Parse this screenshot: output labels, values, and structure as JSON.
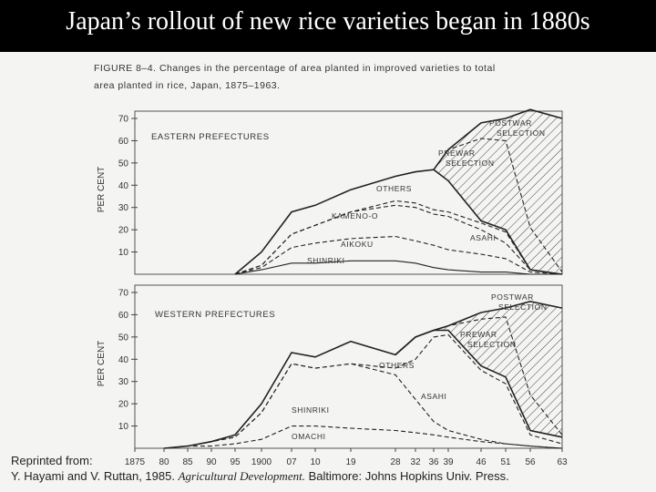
{
  "slide": {
    "title": "Japan’s rollout of new rice varieties began in 1880s"
  },
  "figure": {
    "caption_line1": "FIGURE 8–4. Changes in the percentage of area planted in improved varieties to total",
    "caption_line2": "area planted in rice, Japan, 1875–1963."
  },
  "credit": {
    "line1": "Reprinted from:",
    "authors": "Y. Hayami and V. Ruttan, 1985.",
    "book": "Agricultural Development.",
    "publisher": "Baltimore: Johns Hopkins Univ. Press."
  },
  "chart_data": [
    {
      "type": "area",
      "panel_label": "EASTERN PREFECTURES",
      "ylabel": "PER CENT",
      "ylim": [
        0,
        70
      ],
      "yticks": [
        10,
        20,
        30,
        40,
        50,
        60,
        70
      ],
      "x_tick_labels": [
        "1875",
        "80",
        "85",
        "90",
        "95",
        "1900",
        "07",
        "10",
        "19",
        "28",
        "32",
        "36",
        "39",
        "46",
        "51",
        "56",
        "63"
      ],
      "x_tick_years": [
        1875,
        1880,
        1885,
        1890,
        1895,
        1900,
        1907,
        1910,
        1919,
        1928,
        1932,
        1936,
        1939,
        1946,
        1951,
        1956,
        1963
      ],
      "series": [
        {
          "name": "SHINRIKI",
          "x": [
            1895,
            1900,
            1907,
            1910,
            1919,
            1928,
            1932,
            1936,
            1939,
            1946,
            1951,
            1956,
            1963
          ],
          "y": [
            0,
            2,
            5,
            5,
            6,
            6,
            5,
            3,
            2,
            1,
            1,
            0,
            0
          ]
        },
        {
          "name": "AIKOKU",
          "x": [
            1895,
            1900,
            1907,
            1910,
            1919,
            1928,
            1932,
            1936,
            1939,
            1946,
            1951,
            1956,
            1963
          ],
          "y": [
            0,
            3,
            12,
            14,
            16,
            17,
            15,
            13,
            11,
            9,
            7,
            1,
            0
          ]
        },
        {
          "name": "KAMENO-O",
          "x": [
            1895,
            1900,
            1907,
            1910,
            1919,
            1928,
            1932,
            1936,
            1939,
            1946,
            1951,
            1956,
            1963
          ],
          "y": [
            0,
            4,
            18,
            22,
            28,
            31,
            30,
            27,
            26,
            20,
            14,
            2,
            0
          ]
        },
        {
          "name": "ASAHI",
          "x": [
            1895,
            1900,
            1907,
            1910,
            1919,
            1928,
            1932,
            1936,
            1939,
            1946,
            1951,
            1956,
            1963
          ],
          "y": [
            0,
            4,
            18,
            22,
            28,
            33,
            32,
            29,
            28,
            23,
            19,
            2,
            0
          ]
        },
        {
          "name": "OTHERS",
          "x": [
            1895,
            1900,
            1907,
            1910,
            1919,
            1928,
            1932,
            1936,
            1939,
            1946,
            1951,
            1956,
            1963
          ],
          "y": [
            0,
            10,
            28,
            31,
            38,
            44,
            46,
            47,
            42,
            24,
            20,
            2,
            0
          ]
        },
        {
          "name": "PREWAR SELECTION",
          "x": [
            1936,
            1939,
            1946,
            1951,
            1956,
            1963
          ],
          "y": [
            47,
            56,
            61,
            60,
            21,
            1
          ]
        },
        {
          "name": "POSTWAR SELECTION",
          "x": [
            1936,
            1939,
            1946,
            1951,
            1956,
            1963
          ],
          "y": [
            47,
            56,
            68,
            70,
            74,
            70
          ]
        }
      ]
    },
    {
      "type": "area",
      "panel_label": "WESTERN PREFECTURES",
      "ylabel": "PER CENT",
      "ylim": [
        0,
        70
      ],
      "yticks": [
        10,
        20,
        30,
        40,
        50,
        60,
        70
      ],
      "x_tick_labels": [
        "1875",
        "80",
        "85",
        "90",
        "95",
        "1900",
        "07",
        "10",
        "19",
        "28",
        "32",
        "36",
        "39",
        "46",
        "51",
        "56",
        "63"
      ],
      "x_tick_years": [
        1875,
        1880,
        1885,
        1890,
        1895,
        1900,
        1907,
        1910,
        1919,
        1928,
        1932,
        1936,
        1939,
        1946,
        1951,
        1956,
        1963
      ],
      "series": [
        {
          "name": "OMACHI",
          "x": [
            1880,
            1885,
            1890,
            1895,
            1900,
            1907,
            1910,
            1919,
            1928,
            1932,
            1936,
            1939,
            1946,
            1951,
            1956,
            1963
          ],
          "y": [
            0,
            1,
            1,
            2,
            4,
            10,
            10,
            9,
            8,
            7,
            6,
            5,
            3,
            2,
            1,
            0
          ]
        },
        {
          "name": "SHINRIKI",
          "x": [
            1880,
            1885,
            1890,
            1895,
            1900,
            1907,
            1910,
            1919,
            1928,
            1932,
            1936,
            1939,
            1946,
            1951,
            1956,
            1963
          ],
          "y": [
            0,
            1,
            3,
            5,
            16,
            38,
            36,
            38,
            33,
            22,
            12,
            8,
            4,
            2,
            1,
            0
          ]
        },
        {
          "name": "ASAHI",
          "x": [
            1880,
            1885,
            1890,
            1895,
            1900,
            1907,
            1910,
            1919,
            1928,
            1932,
            1936,
            1939,
            1946,
            1951,
            1956,
            1963
          ],
          "y": [
            0,
            1,
            3,
            5,
            16,
            38,
            36,
            38,
            36,
            40,
            50,
            51,
            35,
            29,
            6,
            2
          ]
        },
        {
          "name": "OTHERS",
          "x": [
            1880,
            1885,
            1890,
            1895,
            1900,
            1907,
            1910,
            1919,
            1928,
            1932,
            1936,
            1939,
            1946,
            1951,
            1956,
            1963
          ],
          "y": [
            0,
            1,
            3,
            6,
            20,
            43,
            41,
            48,
            42,
            50,
            53,
            53,
            37,
            32,
            8,
            5
          ]
        },
        {
          "name": "PREWAR SELECTION",
          "x": [
            1928,
            1932,
            1936,
            1939,
            1946,
            1951,
            1956,
            1963
          ],
          "y": [
            42,
            50,
            53,
            55,
            58,
            59,
            24,
            6
          ]
        },
        {
          "name": "POSTWAR SELECTION",
          "x": [
            1928,
            1932,
            1936,
            1939,
            1946,
            1951,
            1956,
            1963
          ],
          "y": [
            42,
            50,
            53,
            55,
            61,
            63,
            66,
            63
          ]
        }
      ]
    }
  ]
}
